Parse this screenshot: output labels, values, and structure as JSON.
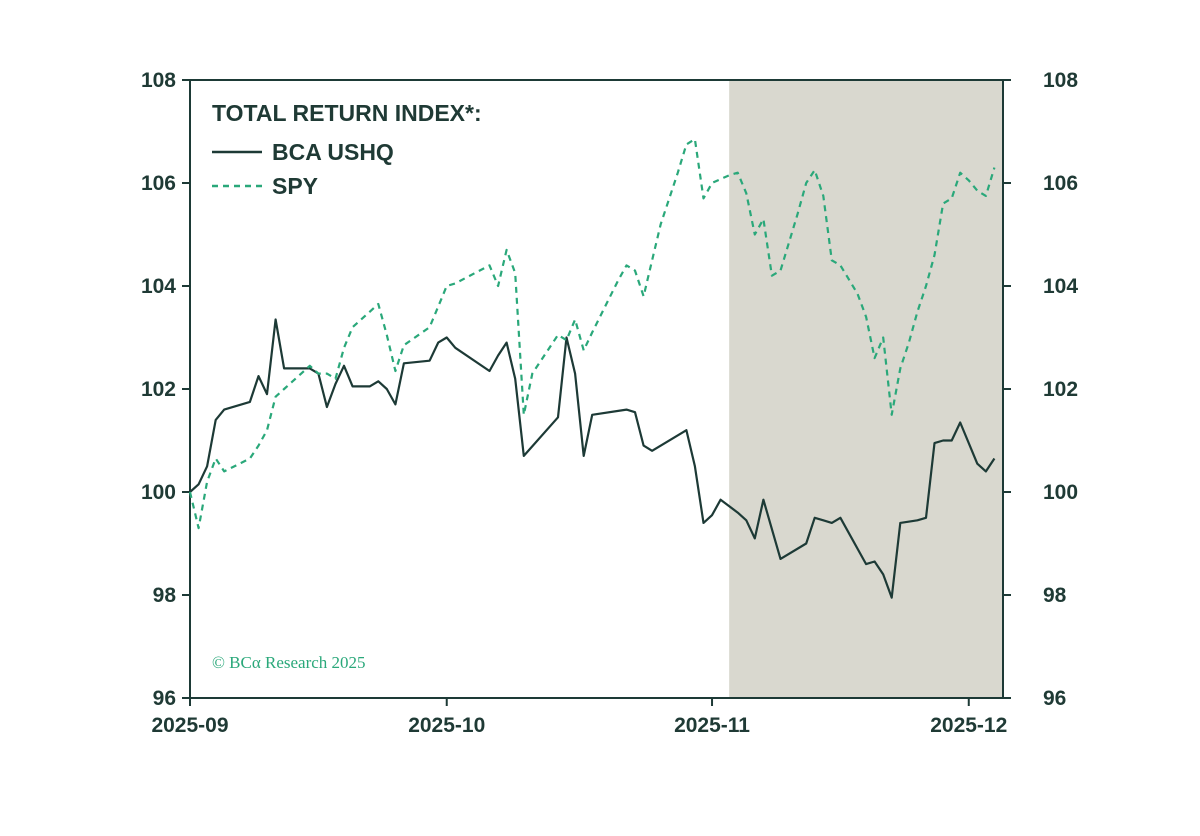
{
  "chart_data": {
    "type": "line",
    "legend_title": "TOTAL RETURN INDEX*:",
    "legend_placement": "top-left",
    "credit": "© BCα Research 2025",
    "xlim": [
      "2025-09-01",
      "2025-12-05"
    ],
    "x_ticks": [
      "2025-09",
      "2025-10",
      "2025-11",
      "2025-12"
    ],
    "y_left": {
      "lim": [
        96,
        108
      ],
      "ticks": [
        "96",
        "98",
        "100",
        "102",
        "104",
        "106",
        "108"
      ]
    },
    "y_right": {
      "lim": [
        96,
        108
      ],
      "ticks": [
        "96",
        "98",
        "100",
        "102",
        "104",
        "106",
        "108"
      ]
    },
    "grid": false,
    "shaded_region": {
      "start": "2025-11-03",
      "end": "2025-12-05",
      "color": "#d9d8cf"
    },
    "series": [
      {
        "name": "BCA USHQ",
        "style": "solid",
        "color": "#1d3a36",
        "points": [
          [
            "2025-09-01",
            100.0
          ],
          [
            "2025-09-02",
            100.15
          ],
          [
            "2025-09-03",
            100.5
          ],
          [
            "2025-09-04",
            101.4
          ],
          [
            "2025-09-05",
            101.6
          ],
          [
            "2025-09-08",
            101.75
          ],
          [
            "2025-09-09",
            102.25
          ],
          [
            "2025-09-10",
            101.9
          ],
          [
            "2025-09-11",
            103.35
          ],
          [
            "2025-09-12",
            102.4
          ],
          [
            "2025-09-15",
            102.4
          ],
          [
            "2025-09-16",
            102.3
          ],
          [
            "2025-09-17",
            101.65
          ],
          [
            "2025-09-18",
            102.1
          ],
          [
            "2025-09-19",
            102.45
          ],
          [
            "2025-09-20",
            102.05
          ],
          [
            "2025-09-22",
            102.05
          ],
          [
            "2025-09-23",
            102.15
          ],
          [
            "2025-09-24",
            102.0
          ],
          [
            "2025-09-25",
            101.7
          ],
          [
            "2025-09-26",
            102.5
          ],
          [
            "2025-09-29",
            102.55
          ],
          [
            "2025-09-30",
            102.9
          ],
          [
            "2025-10-01",
            103.0
          ],
          [
            "2025-10-02",
            102.8
          ],
          [
            "2025-10-06",
            102.35
          ],
          [
            "2025-10-07",
            102.65
          ],
          [
            "2025-10-08",
            102.9
          ],
          [
            "2025-10-09",
            102.2
          ],
          [
            "2025-10-10",
            100.7
          ],
          [
            "2025-10-14",
            101.45
          ],
          [
            "2025-10-15",
            103.0
          ],
          [
            "2025-10-16",
            102.3
          ],
          [
            "2025-10-17",
            100.7
          ],
          [
            "2025-10-18",
            101.5
          ],
          [
            "2025-10-22",
            101.6
          ],
          [
            "2025-10-23",
            101.55
          ],
          [
            "2025-10-24",
            100.9
          ],
          [
            "2025-10-25",
            100.8
          ],
          [
            "2025-10-29",
            101.2
          ],
          [
            "2025-10-30",
            100.5
          ],
          [
            "2025-10-31",
            99.4
          ],
          [
            "2025-11-01",
            99.55
          ],
          [
            "2025-11-02",
            99.85
          ],
          [
            "2025-11-04",
            99.6
          ],
          [
            "2025-11-05",
            99.45
          ],
          [
            "2025-11-06",
            99.1
          ],
          [
            "2025-11-07",
            99.85
          ],
          [
            "2025-11-09",
            98.7
          ],
          [
            "2025-11-12",
            99.0
          ],
          [
            "2025-11-13",
            99.5
          ],
          [
            "2025-11-14",
            99.45
          ],
          [
            "2025-11-15",
            99.4
          ],
          [
            "2025-11-16",
            99.5
          ],
          [
            "2025-11-19",
            98.6
          ],
          [
            "2025-11-20",
            98.65
          ],
          [
            "2025-11-21",
            98.4
          ],
          [
            "2025-11-22",
            97.95
          ],
          [
            "2025-11-23",
            99.4
          ],
          [
            "2025-11-25",
            99.45
          ],
          [
            "2025-11-26",
            99.5
          ],
          [
            "2025-11-27",
            100.95
          ],
          [
            "2025-11-28",
            101.0
          ],
          [
            "2025-11-29",
            101.0
          ],
          [
            "2025-11-30",
            101.35
          ],
          [
            "2025-12-02",
            100.55
          ],
          [
            "2025-12-03",
            100.4
          ],
          [
            "2025-12-04",
            100.65
          ]
        ]
      },
      {
        "name": "SPY",
        "style": "dashed",
        "color": "#2aa87a",
        "points": [
          [
            "2025-09-01",
            100.0
          ],
          [
            "2025-09-02",
            99.3
          ],
          [
            "2025-09-03",
            100.2
          ],
          [
            "2025-09-04",
            100.65
          ],
          [
            "2025-09-05",
            100.4
          ],
          [
            "2025-09-08",
            100.65
          ],
          [
            "2025-09-09",
            100.9
          ],
          [
            "2025-09-10",
            101.2
          ],
          [
            "2025-09-11",
            101.85
          ],
          [
            "2025-09-12",
            102.0
          ],
          [
            "2025-09-15",
            102.45
          ],
          [
            "2025-09-16",
            102.3
          ],
          [
            "2025-09-17",
            102.3
          ],
          [
            "2025-09-18",
            102.2
          ],
          [
            "2025-09-19",
            102.8
          ],
          [
            "2025-09-20",
            103.2
          ],
          [
            "2025-09-22",
            103.5
          ],
          [
            "2025-09-23",
            103.65
          ],
          [
            "2025-09-24",
            103.05
          ],
          [
            "2025-09-25",
            102.35
          ],
          [
            "2025-09-26",
            102.85
          ],
          [
            "2025-09-29",
            103.2
          ],
          [
            "2025-09-30",
            103.6
          ],
          [
            "2025-10-01",
            104.0
          ],
          [
            "2025-10-02",
            104.05
          ],
          [
            "2025-10-06",
            104.4
          ],
          [
            "2025-10-07",
            104.0
          ],
          [
            "2025-10-08",
            104.7
          ],
          [
            "2025-10-09",
            104.25
          ],
          [
            "2025-10-10",
            101.5
          ],
          [
            "2025-10-11",
            102.3
          ],
          [
            "2025-10-14",
            103.05
          ],
          [
            "2025-10-15",
            102.95
          ],
          [
            "2025-10-16",
            103.35
          ],
          [
            "2025-10-17",
            102.75
          ],
          [
            "2025-10-18",
            103.1
          ],
          [
            "2025-10-21",
            104.1
          ],
          [
            "2025-10-22",
            104.4
          ],
          [
            "2025-10-23",
            104.3
          ],
          [
            "2025-10-24",
            103.8
          ],
          [
            "2025-10-25",
            104.5
          ],
          [
            "2025-10-26",
            105.2
          ],
          [
            "2025-10-28",
            106.2
          ],
          [
            "2025-10-29",
            106.75
          ],
          [
            "2025-10-30",
            106.85
          ],
          [
            "2025-10-31",
            105.7
          ],
          [
            "2025-11-01",
            106.0
          ],
          [
            "2025-11-03",
            106.15
          ],
          [
            "2025-11-04",
            106.2
          ],
          [
            "2025-11-05",
            105.8
          ],
          [
            "2025-11-06",
            105.0
          ],
          [
            "2025-11-07",
            105.3
          ],
          [
            "2025-11-08",
            104.2
          ],
          [
            "2025-11-09",
            104.3
          ],
          [
            "2025-11-11",
            105.4
          ],
          [
            "2025-11-12",
            106.0
          ],
          [
            "2025-11-13",
            106.25
          ],
          [
            "2025-11-14",
            105.75
          ],
          [
            "2025-11-15",
            104.5
          ],
          [
            "2025-11-16",
            104.4
          ],
          [
            "2025-11-18",
            103.85
          ],
          [
            "2025-11-19",
            103.4
          ],
          [
            "2025-11-20",
            102.6
          ],
          [
            "2025-11-21",
            103.0
          ],
          [
            "2025-11-22",
            101.5
          ],
          [
            "2025-11-23",
            102.4
          ],
          [
            "2025-11-24",
            102.9
          ],
          [
            "2025-11-25",
            103.5
          ],
          [
            "2025-11-26",
            104.0
          ],
          [
            "2025-11-27",
            104.6
          ],
          [
            "2025-11-28",
            105.6
          ],
          [
            "2025-11-29",
            105.7
          ],
          [
            "2025-11-30",
            106.2
          ],
          [
            "2025-12-01",
            106.05
          ],
          [
            "2025-12-02",
            105.85
          ],
          [
            "2025-12-03",
            105.75
          ],
          [
            "2025-12-04",
            106.3
          ]
        ]
      }
    ]
  }
}
